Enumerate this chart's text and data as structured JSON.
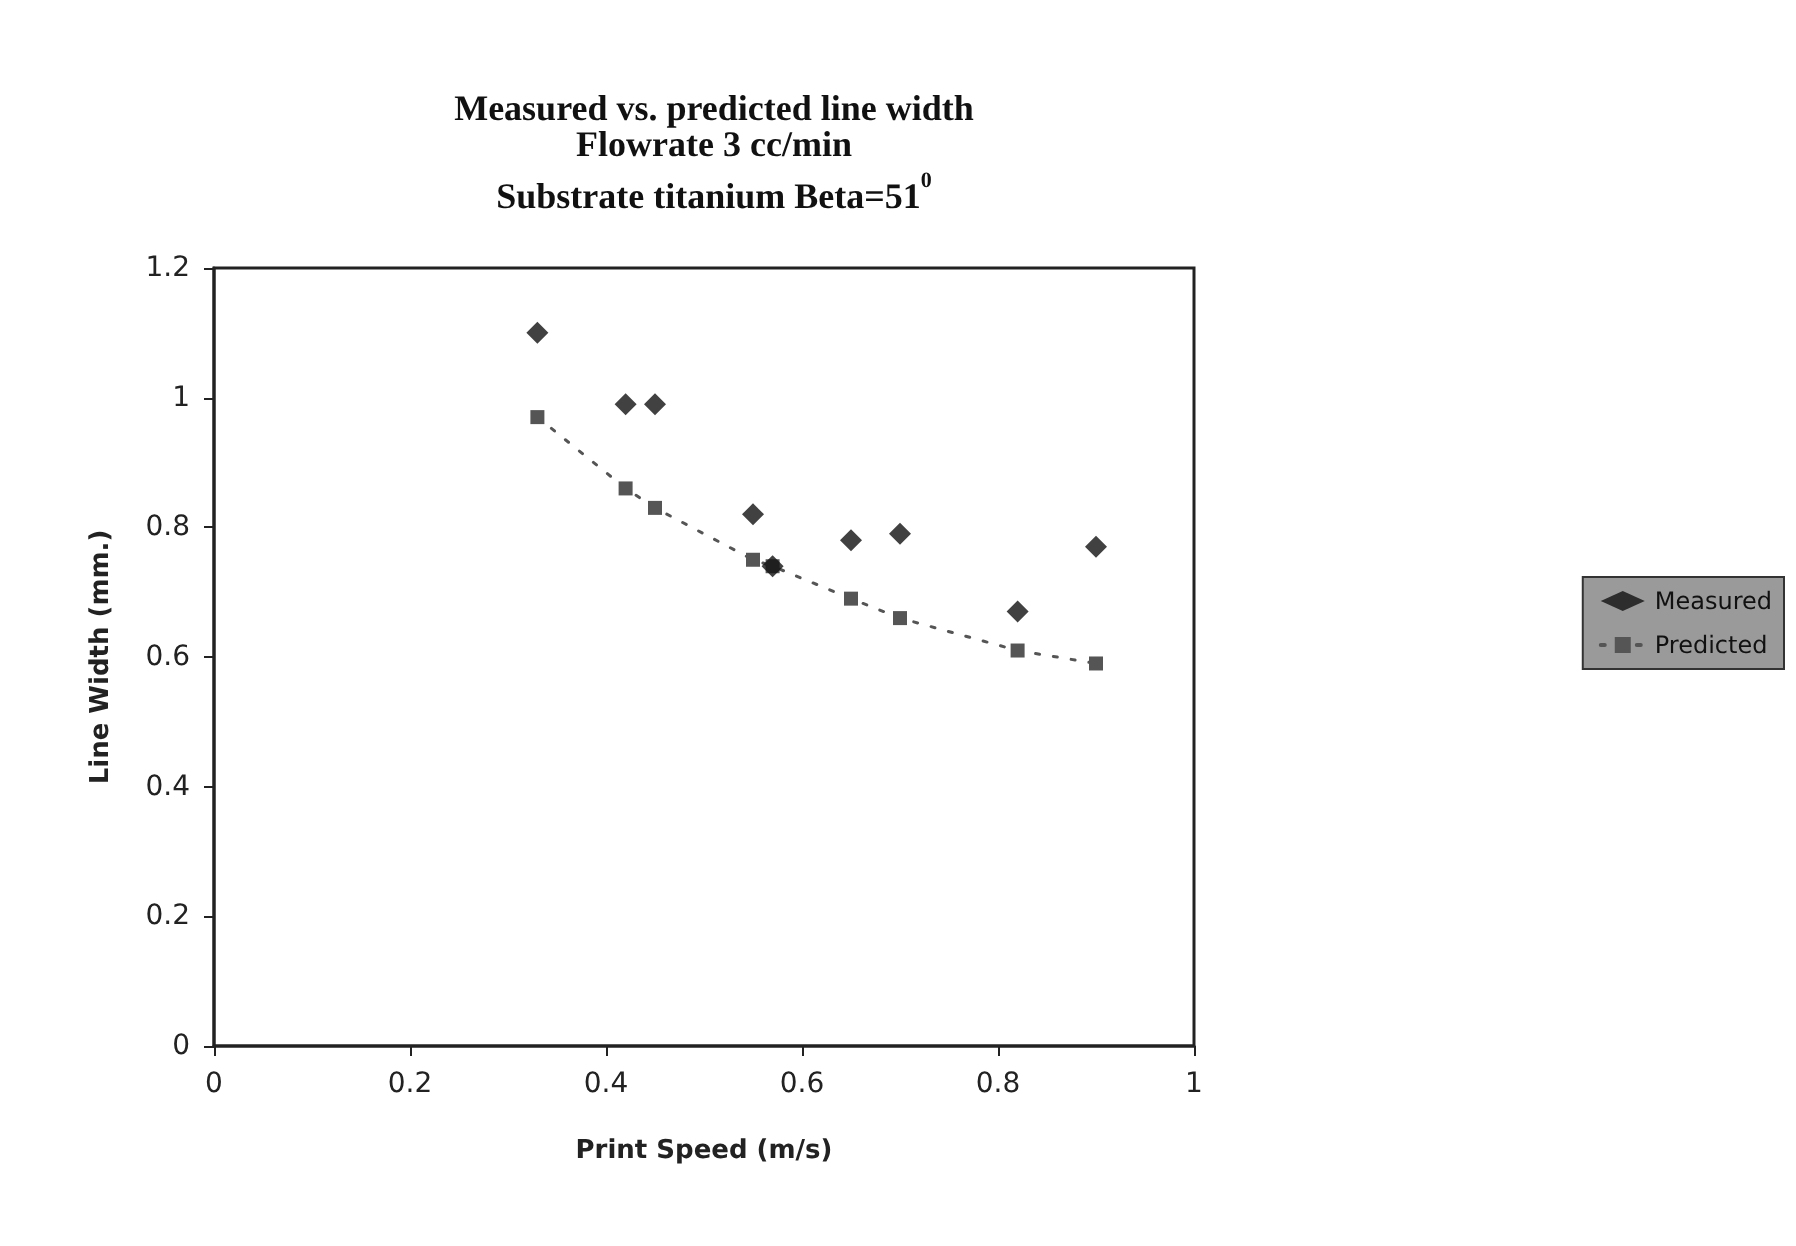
{
  "chart_data": {
    "type": "scatter",
    "title": "Measured vs. predicted line width",
    "subtitle": "Flowrate 3 cc/min\nSubstrate titanium Beta=51$^{0}$",
    "xlabel": "Print Speed (m/s)",
    "ylabel": "Line Width (mm.)",
    "series": [
      {
        "name": "Measured",
        "color": "#111111",
        "marker": "diamond",
        "x": [
          0.33,
          0.42,
          0.45,
          0.55,
          0.57,
          0.65,
          0.7,
          0.82,
          0.9
        ],
        "values": [
          1.1,
          0.99,
          0.99,
          0.82,
          0.74,
          0.78,
          0.79,
          0.67,
          0.77
        ]
      },
      {
        "name": "Predicted",
        "type": "line",
        "color": "#555555",
        "marker": "square",
        "line_style": "dotted",
        "x": [
          0.33,
          0.42,
          0.45,
          0.55,
          0.57,
          0.65,
          0.7,
          0.82,
          0.9
        ],
        "values": [
          0.97,
          0.86,
          0.83,
          0.75,
          0.74,
          0.69,
          0.66,
          0.61,
          0.59
        ]
      }
    ],
    "xlim": [
      0,
      1
    ],
    "xticks": [
      0,
      0.2,
      0.4,
      0.6,
      0.8,
      1
    ],
    "ylim": [
      0,
      1.2
    ],
    "yticks": [
      0,
      0.2,
      0.4,
      0.6,
      0.8,
      1,
      1.2
    ],
    "grid": false,
    "legend": "right"
  }
}
